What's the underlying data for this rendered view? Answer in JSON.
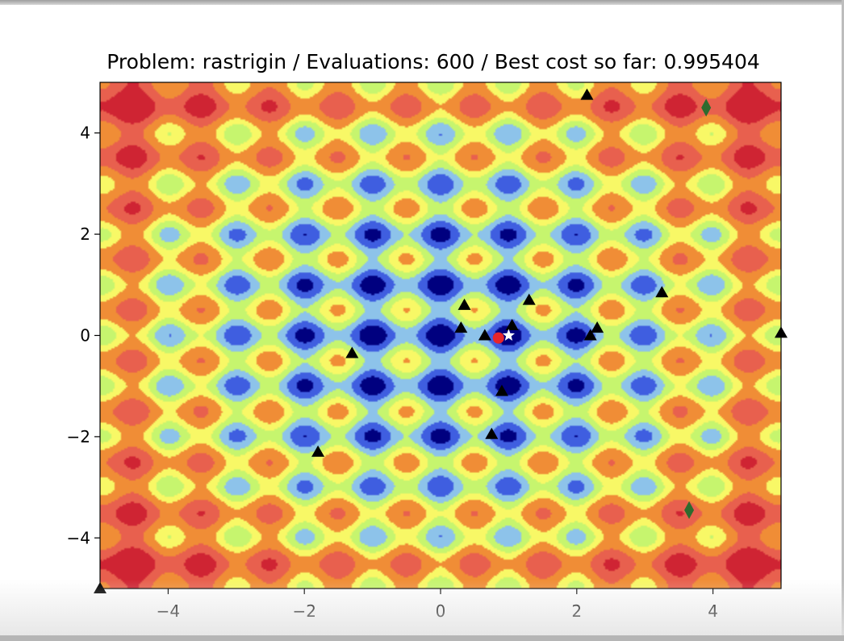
{
  "chart_data": {
    "type": "contour",
    "title": "Problem: rastrigin / Evaluations: 600 / Best cost so far: 0.995404",
    "xlabel": "",
    "ylabel": "",
    "xlim": [
      -5,
      5
    ],
    "ylim": [
      -5,
      5
    ],
    "xticks": [
      -4,
      -2,
      0,
      2,
      4
    ],
    "yticks": [
      -4,
      -2,
      0,
      2,
      4
    ],
    "xtick_labels": [
      "−4",
      "−2",
      "0",
      "2",
      "4"
    ],
    "ytick_labels": [
      "−4",
      "−2",
      "0",
      "2",
      "4"
    ],
    "grid": false,
    "function": "rastrigin",
    "colormap": [
      "#00007f",
      "#3f5ee0",
      "#8dc3ea",
      "#c6f56e",
      "#f8f866",
      "#f08d36",
      "#e8604e",
      "#cf2433"
    ],
    "contour_levels": [
      0,
      8,
      16,
      24,
      32,
      40,
      52,
      64,
      82
    ],
    "series": [
      {
        "marker": "triangle",
        "color": "#000000",
        "points": [
          [
            2.15,
            4.75
          ],
          [
            -1.8,
            -2.3
          ],
          [
            -1.3,
            -0.35
          ],
          [
            0.3,
            0.15
          ],
          [
            0.35,
            0.6
          ],
          [
            0.65,
            0.0
          ],
          [
            1.05,
            0.2
          ],
          [
            1.3,
            0.7
          ],
          [
            0.9,
            -1.1
          ],
          [
            0.75,
            -1.95
          ],
          [
            2.2,
            0.0
          ],
          [
            2.3,
            0.15
          ],
          [
            3.25,
            0.85
          ],
          [
            5.0,
            0.05
          ],
          [
            -5.0,
            -5.0
          ]
        ]
      },
      {
        "marker": "diamond",
        "color": "#2e6b2e",
        "points": [
          [
            3.9,
            4.5
          ],
          [
            3.65,
            -3.45
          ]
        ]
      },
      {
        "marker": "circle",
        "color": "#e8252a",
        "points": [
          [
            0.85,
            -0.05
          ]
        ]
      },
      {
        "marker": "star",
        "color": "#ffffff",
        "points": [
          [
            1.0,
            0.0
          ]
        ]
      }
    ]
  }
}
